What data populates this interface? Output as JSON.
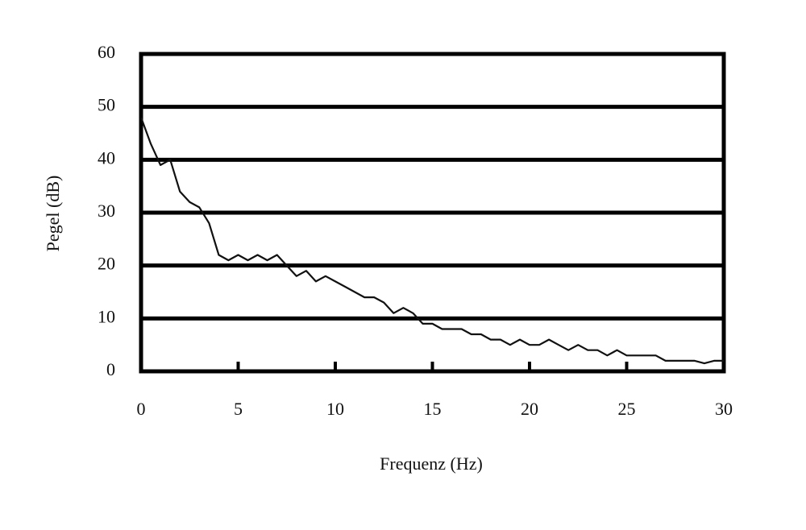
{
  "chart_data": {
    "type": "line",
    "x_label": "Frequenz (Hz)",
    "y_label": "Pegel (dB)",
    "x": [
      0,
      0.5,
      1,
      1.5,
      2,
      2.5,
      3,
      3.5,
      4,
      4.5,
      5,
      5.5,
      6,
      6.5,
      7,
      7.5,
      8,
      8.5,
      9,
      9.5,
      10,
      10.5,
      11,
      11.5,
      12,
      12.5,
      13,
      13.5,
      14,
      14.5,
      15,
      15.5,
      16,
      16.5,
      17,
      17.5,
      18,
      18.5,
      19,
      19.5,
      20,
      20.5,
      21,
      21.5,
      22,
      22.5,
      23,
      23.5,
      24,
      24.5,
      25,
      25.5,
      26,
      26.5,
      27,
      27.5,
      28,
      28.5,
      29,
      29.5,
      30
    ],
    "values": [
      48,
      43,
      39,
      40,
      34,
      32,
      31,
      28,
      22,
      21,
      22,
      21,
      22,
      21,
      22,
      20,
      18,
      19,
      17,
      18,
      17,
      16,
      15,
      14,
      14,
      13,
      11,
      12,
      11,
      9,
      9,
      8,
      8,
      8,
      7,
      7,
      6,
      6,
      5,
      6,
      5,
      5,
      6,
      5,
      4,
      5,
      4,
      4,
      3,
      4,
      3,
      3,
      3,
      3,
      2,
      2,
      2,
      2,
      1.5,
      2,
      2
    ],
    "color": "#111111",
    "xlim": [
      0,
      30
    ],
    "xticks": [
      0,
      5,
      10,
      15,
      20,
      25,
      30
    ],
    "ylim": [
      0,
      60
    ],
    "yticks": [
      0,
      10,
      20,
      30,
      40,
      50,
      60
    ],
    "grid": true
  }
}
